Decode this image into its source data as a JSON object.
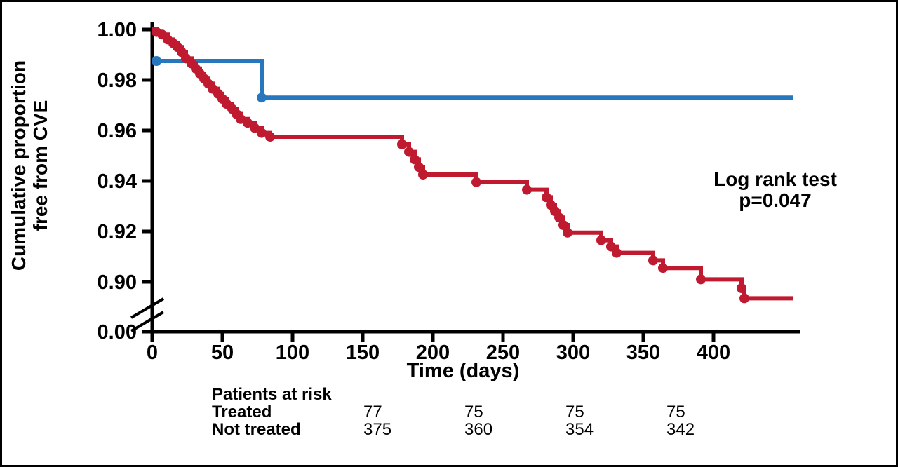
{
  "figure": {
    "ylabel_line1": "Cumulative proportion",
    "ylabel_line2": "free from CVE",
    "xlabel": "Time (days)",
    "annotation_line1": "Log rank test",
    "annotation_line2": "p=0.047"
  },
  "chart_data": {
    "type": "line",
    "subtype": "kaplan-meier-step-curve",
    "title": "",
    "xlabel": "Time (days)",
    "ylabel": "Cumulative proportion free from CVE",
    "annotation": "Log rank test p=0.047",
    "grid": false,
    "legend_position": "none",
    "xlim": [
      0,
      460
    ],
    "x_ticks": [
      0,
      50,
      100,
      150,
      200,
      250,
      300,
      350,
      400
    ],
    "y_axis_break": true,
    "ylim_top_segment": [
      0.89,
      1.0
    ],
    "y_ticks": [
      {
        "label": "1.00",
        "value": 1.0
      },
      {
        "label": "0.98",
        "value": 0.98
      },
      {
        "label": "0.96",
        "value": 0.96
      },
      {
        "label": "0.94",
        "value": 0.94
      },
      {
        "label": "0.92",
        "value": 0.92
      },
      {
        "label": "0.90",
        "value": 0.9
      },
      {
        "label": "0.00",
        "value": null
      }
    ],
    "axis_color": "#000000",
    "series": [
      {
        "name": "Treated",
        "color": "#2777bf",
        "points": [
          [
            0,
            0.9875
          ],
          [
            78,
            0.973
          ],
          [
            457,
            0.973
          ]
        ],
        "markers": [
          [
            3,
            0.9875
          ],
          [
            78,
            0.973
          ]
        ]
      },
      {
        "name": "Not treated",
        "color": "#c01a31",
        "points": [
          [
            0,
            1.0
          ],
          [
            3,
            0.999
          ],
          [
            7,
            0.998
          ],
          [
            11,
            0.996
          ],
          [
            15,
            0.9945
          ],
          [
            18,
            0.993
          ],
          [
            21,
            0.991
          ],
          [
            24,
            0.9885
          ],
          [
            28,
            0.9865
          ],
          [
            31,
            0.9845
          ],
          [
            34,
            0.9825
          ],
          [
            37,
            0.9805
          ],
          [
            40,
            0.9785
          ],
          [
            43,
            0.9765
          ],
          [
            47,
            0.9745
          ],
          [
            50,
            0.9725
          ],
          [
            53,
            0.9705
          ],
          [
            57,
            0.9685
          ],
          [
            60,
            0.9665
          ],
          [
            63,
            0.9645
          ],
          [
            68,
            0.963
          ],
          [
            73,
            0.961
          ],
          [
            78,
            0.959
          ],
          [
            84,
            0.9575
          ],
          [
            178,
            0.9545
          ],
          [
            183,
            0.9515
          ],
          [
            187,
            0.9485
          ],
          [
            190,
            0.9455
          ],
          [
            193,
            0.9425
          ],
          [
            231,
            0.9395
          ],
          [
            267,
            0.9365
          ],
          [
            281,
            0.9335
          ],
          [
            284,
            0.9305
          ],
          [
            287,
            0.928
          ],
          [
            290,
            0.9255
          ],
          [
            293,
            0.9225
          ],
          [
            296,
            0.9195
          ],
          [
            320,
            0.9165
          ],
          [
            327,
            0.914
          ],
          [
            331,
            0.9115
          ],
          [
            357,
            0.9085
          ],
          [
            364,
            0.9055
          ],
          [
            391,
            0.901
          ],
          [
            420,
            0.8975
          ],
          [
            422,
            0.8935
          ],
          [
            457,
            0.8935
          ]
        ],
        "markers": "auto_steps"
      }
    ]
  },
  "risk_table": {
    "title": "Patients at risk",
    "rows": [
      {
        "label": "Treated",
        "values": [
          "77",
          "75",
          "75",
          "75"
        ]
      },
      {
        "label": "Not treated",
        "values": [
          "375",
          "360",
          "354",
          "342"
        ]
      }
    ]
  }
}
